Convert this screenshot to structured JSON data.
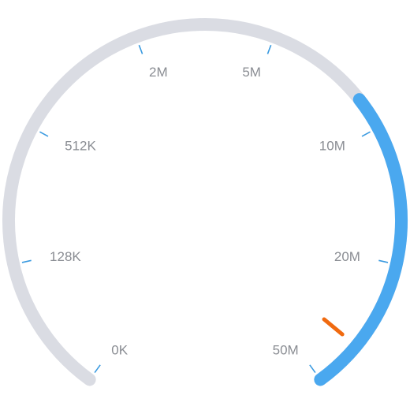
{
  "gauge": {
    "tick_labels": [
      "0K",
      "128K",
      "512K",
      "2M",
      "5M",
      "10M",
      "20M",
      "50M"
    ],
    "progress_fraction": 0.32,
    "needle_fraction": 0.05,
    "colors": {
      "track": "#dadce3",
      "progress": "#4aa8ef",
      "tick": "#3a9ae0",
      "label": "#8a8d93",
      "needle": "#f06a10"
    }
  }
}
